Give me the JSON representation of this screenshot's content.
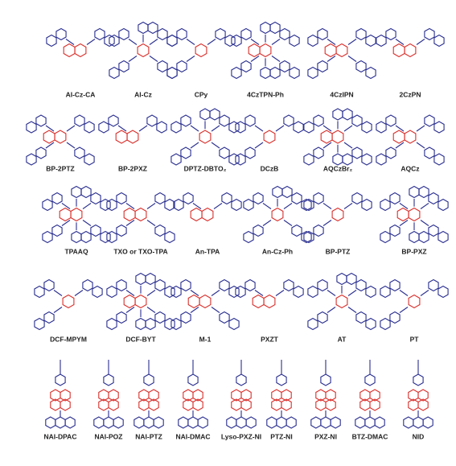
{
  "rows": [
    [
      "AI-Cz-CA",
      "AI-Cz",
      "CPy",
      "4CzTPN-Ph",
      "4CzIPN",
      "2CzPN"
    ],
    [
      "BP-2PTZ",
      "BP-2PXZ",
      "DPTZ-DBTO₂",
      "DCzB",
      "AQCzBr₂",
      "AQCz"
    ],
    [
      "TPAAQ",
      "TXO or TXO-TPA",
      "An-TPA",
      "An-Cz-Ph",
      "BP-PTZ",
      "BP-PXZ"
    ],
    [
      "DCF-MPYM",
      "DCF-BYT",
      "M-1",
      "PXZT",
      "AT",
      "PT"
    ],
    [
      "NAI-DPAC",
      "NAI-POZ",
      "NAI-PTZ",
      "NAI-DMAC",
      "Lyso-PXZ-NI",
      "PTZ-NI",
      "PXZ-NI",
      "BTZ-DMAC",
      "NID"
    ]
  ]
}
